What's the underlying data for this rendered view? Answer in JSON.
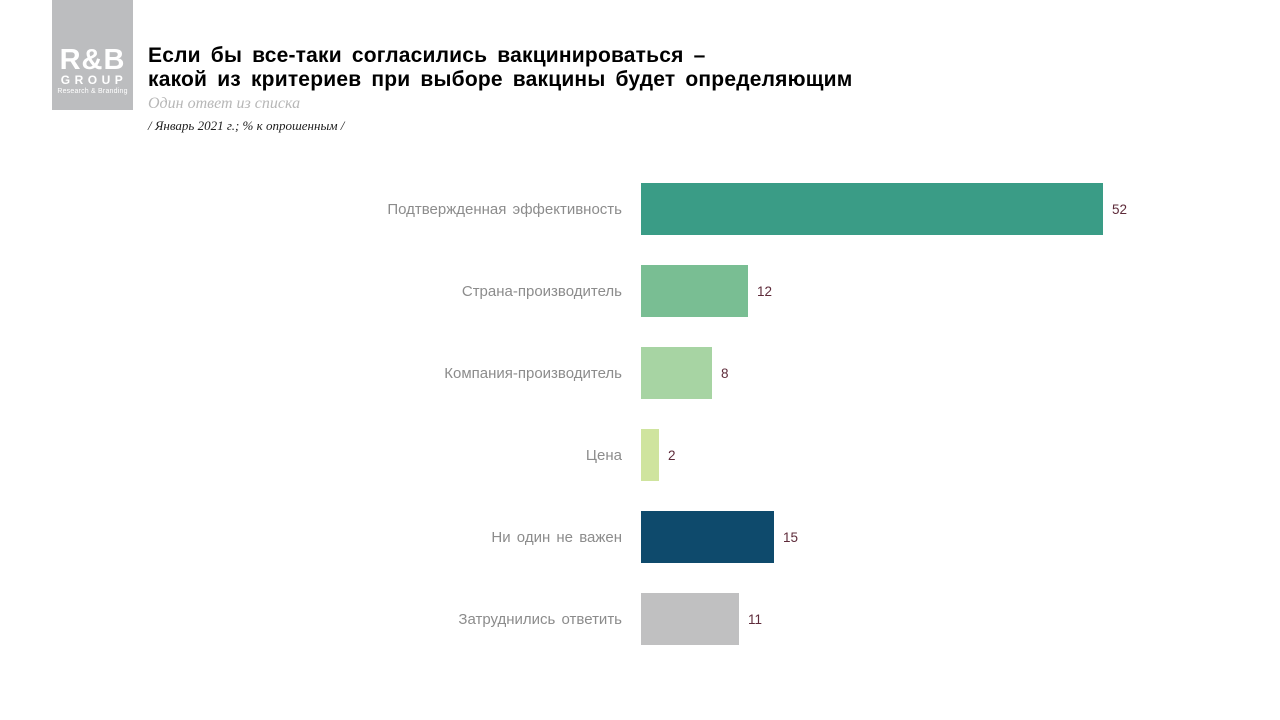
{
  "logo": {
    "line1": "R&B",
    "line2": "GROUP",
    "line3": "Research & Branding"
  },
  "header": {
    "title_line1": "Если бы все-таки согласились вакцинироваться –",
    "title_line2": "какой из критериев при выборе вакцины будет определяющим",
    "subtitle": "Один ответ из списка",
    "note": "/ Январь 2021 г.; % к опрошенным /"
  },
  "chart_data": {
    "type": "bar",
    "orientation": "horizontal",
    "title": "Если бы все-таки согласились вакцинироваться – какой из критериев при выборе вакцины будет определяющим",
    "subtitle": "Один ответ из списка",
    "note": "/ Январь 2021 г.; % к опрошенным /",
    "categories": [
      "Подтвержденная эффективность",
      "Страна-производитель",
      "Компания-производитель",
      "Цена",
      "Ни один не важен",
      "Затруднились ответить"
    ],
    "values": [
      52,
      12,
      8,
      2,
      15,
      11
    ],
    "bar_colors": [
      "#3a9c86",
      "#79be93",
      "#a7d4a3",
      "#cfe49e",
      "#0e4a6c",
      "#c0c0c1"
    ],
    "value_label_color": "#5e2b3a",
    "xlim": [
      0,
      52
    ],
    "grid": false,
    "legend": false
  }
}
